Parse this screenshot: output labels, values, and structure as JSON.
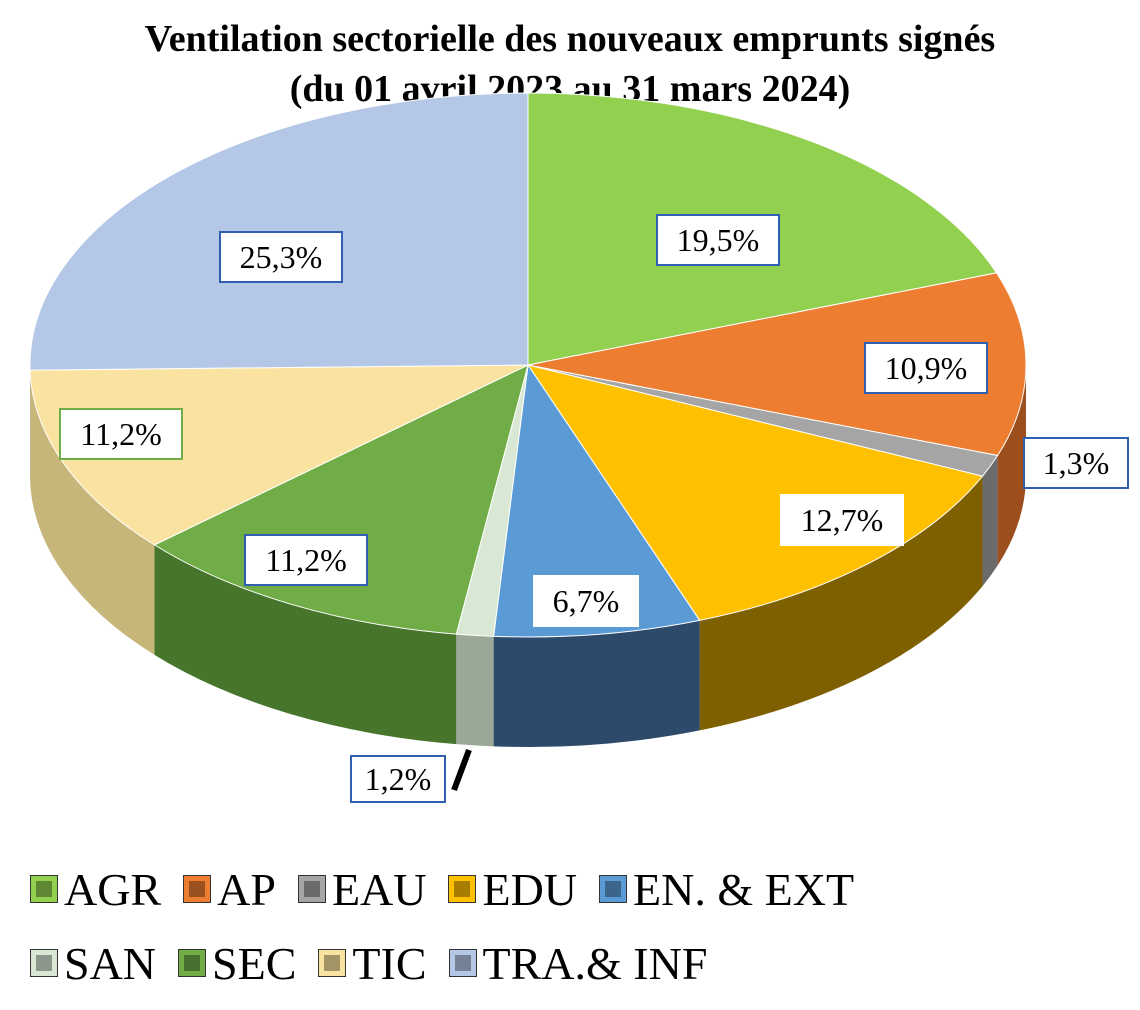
{
  "title_line1": "Ventilation sectorielle des nouveaux emprunts signés",
  "title_line2": "(du 01 avril 2023 au 31 mars 2024)",
  "chart_data": {
    "type": "pie",
    "title": "Ventilation sectorielle des nouveaux emprunts signés (du 01 avril 2023 au 31 mars 2024)",
    "categories": [
      "AGR",
      "AP",
      "EAU",
      "EDU",
      "EN. & EXT",
      "SAN",
      "SEC",
      "TIC",
      "TRA.& INF"
    ],
    "values": [
      19.5,
      10.9,
      1.3,
      12.7,
      6.7,
      1.2,
      11.2,
      11.2,
      25.3
    ],
    "labels": [
      "19,5%",
      "10,9%",
      "1,3%",
      "12,7%",
      "6,7%",
      "1,2%",
      "11,2%",
      "11,2%",
      "25,3%"
    ],
    "colors": [
      "#92d050",
      "#ed7d31",
      "#a5a5a5",
      "#ffc000",
      "#5b9bd5",
      "#d9e7d5",
      "#70ad47",
      "#fae3a0",
      "#b4c7e7"
    ],
    "side_colors": [
      "#5e8a2a",
      "#9c4f1c",
      "#6b6b6b",
      "#7f6000",
      "#2e4a6b",
      "#9aa897",
      "#46752b",
      "#c7b679",
      "#7a8db0"
    ],
    "label_border_colors": [
      "#2e5fb0",
      "#2e5fb0",
      "#2e5fb0",
      "#ffffff",
      "#ffffff",
      "#2e5fb0",
      "#2e5fb0",
      "#70ad47",
      "#2e5fb0"
    ],
    "legend_rows": [
      [
        "AGR",
        "AP",
        "EAU",
        "EDU",
        "EN. & EXT"
      ],
      [
        "SAN",
        "SEC",
        "TIC",
        "TRA.& INF"
      ]
    ],
    "start_angle_deg": 90,
    "direction": "clockwise",
    "style": "3d",
    "legend_position": "bottom"
  }
}
